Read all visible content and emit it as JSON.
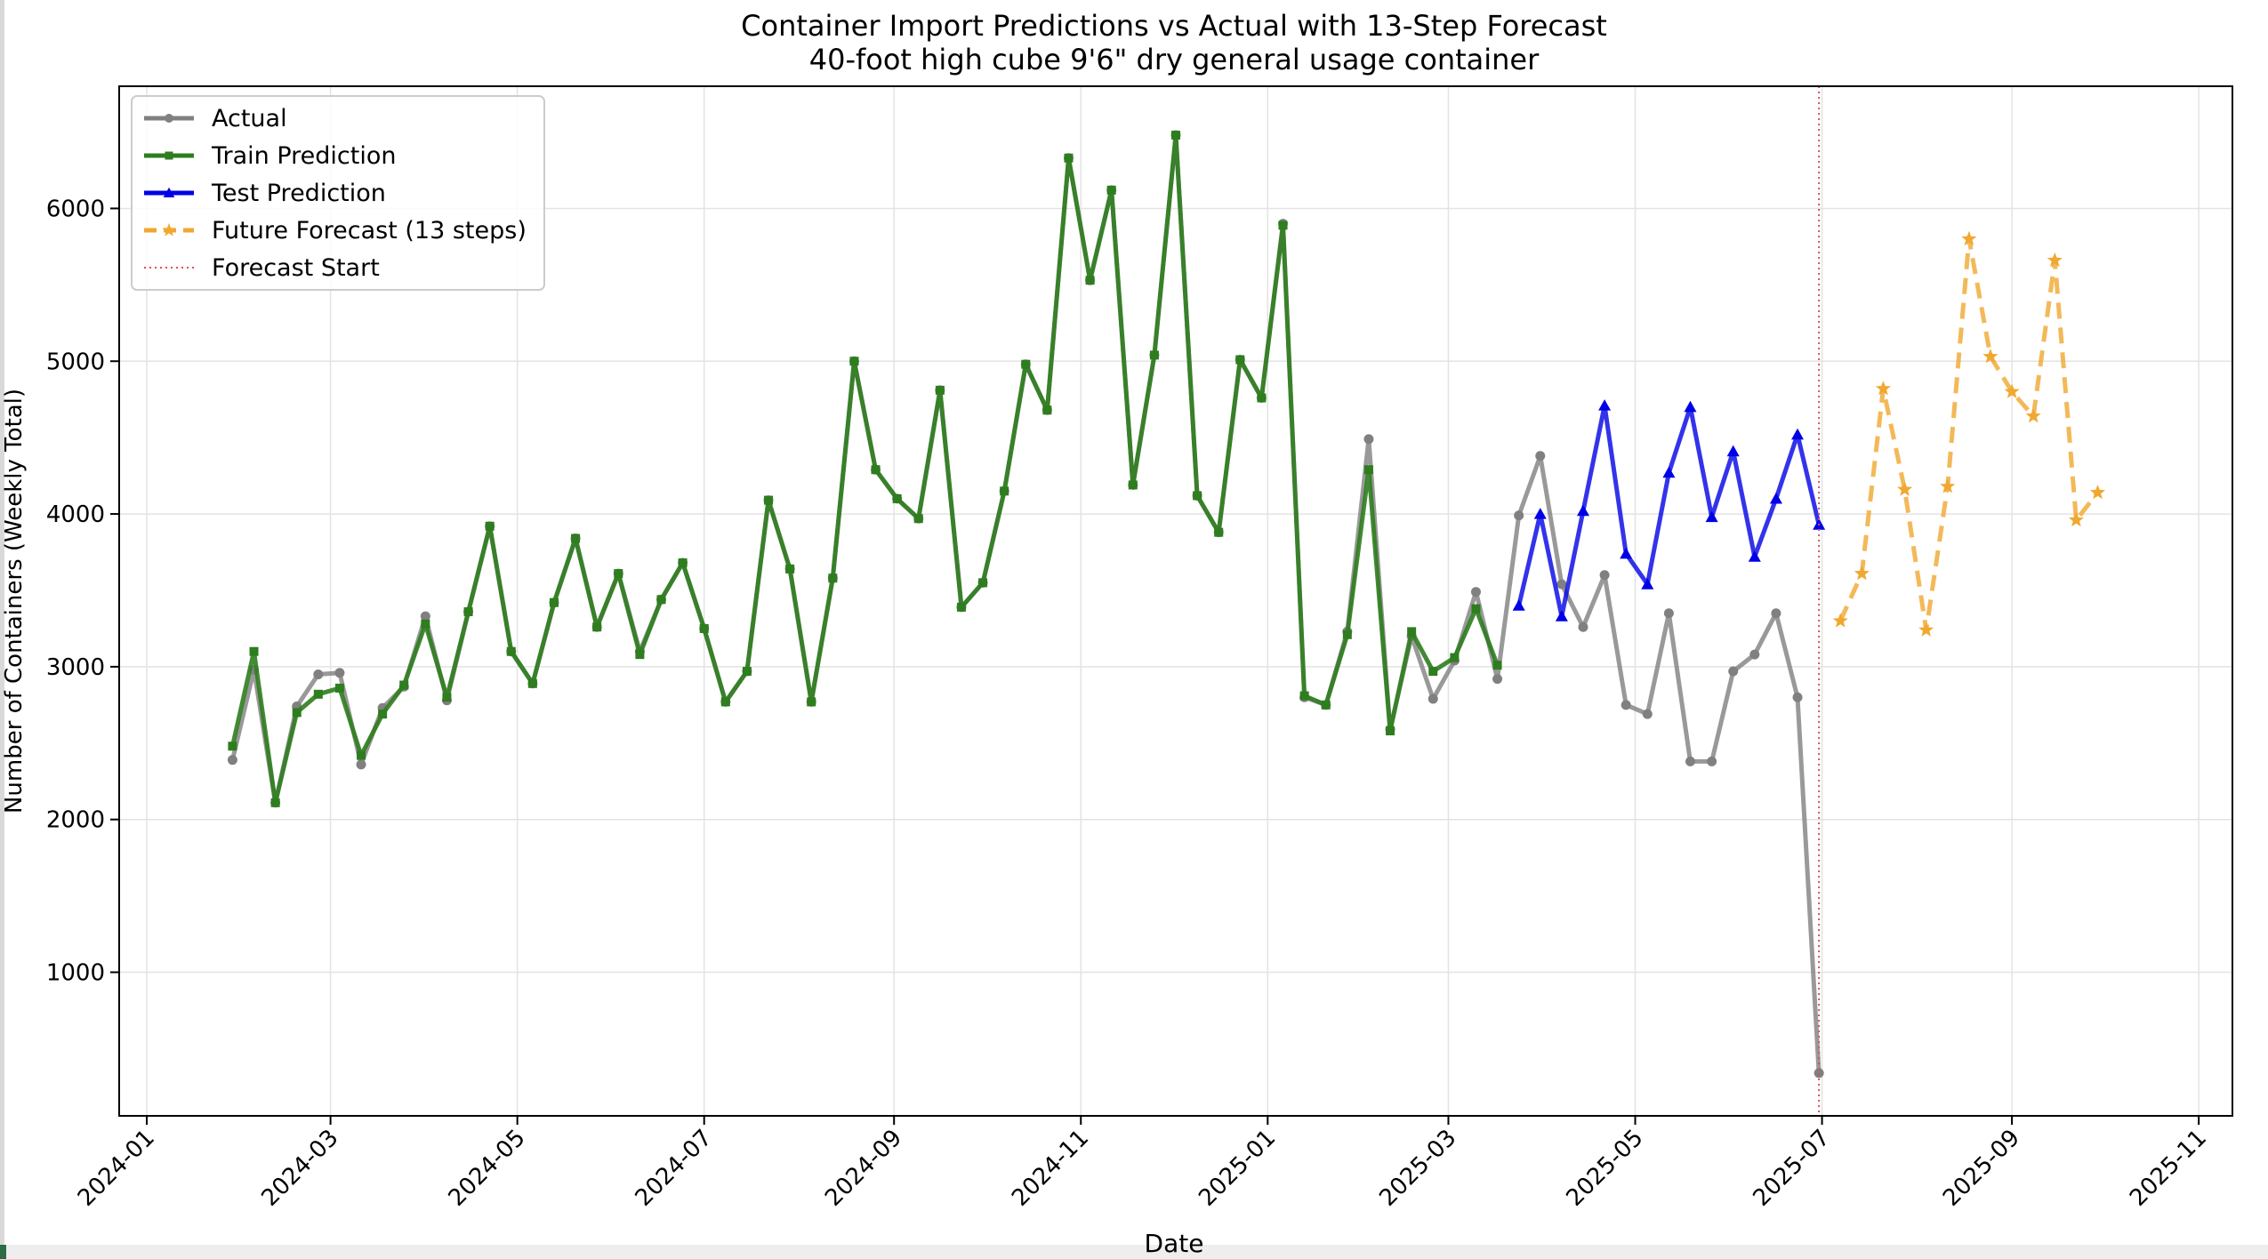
{
  "chart_data": {
    "type": "line",
    "title": "Container Import Predictions vs Actual with 13-Step Forecast",
    "subtitle": "40-foot high cube 9'6\" dry general usage container",
    "xlabel": "Date",
    "ylabel": "Number of Containers (Weekly Total)",
    "x_axis": {
      "type": "date",
      "range": [
        "2023-12-23",
        "2025-11-12"
      ],
      "tick_dates": [
        "2024-01-01",
        "2024-03-01",
        "2024-05-01",
        "2024-07-01",
        "2024-09-01",
        "2024-11-01",
        "2025-01-01",
        "2025-03-01",
        "2025-05-01",
        "2025-07-01",
        "2025-09-01",
        "2025-11-01"
      ],
      "tick_labels": [
        "2024-01",
        "2024-03",
        "2024-05",
        "2024-07",
        "2024-09",
        "2024-11",
        "2025-01",
        "2025-03",
        "2025-05",
        "2025-07",
        "2025-09",
        "2025-11"
      ]
    },
    "y_axis": {
      "range": [
        60,
        6800
      ],
      "ticks": [
        1000,
        2000,
        3000,
        4000,
        5000,
        6000
      ],
      "tick_labels": [
        "1000",
        "2000",
        "3000",
        "4000",
        "5000",
        "6000"
      ]
    },
    "grid": true,
    "legend_position": "top-left",
    "forecast_start": "2025-06-30",
    "series": [
      {
        "name": "Actual",
        "color": "#808080",
        "marker": "circle",
        "x": [
          "2024-01-29",
          "2024-02-05",
          "2024-02-12",
          "2024-02-19",
          "2024-02-26",
          "2024-03-04",
          "2024-03-11",
          "2024-03-18",
          "2024-03-25",
          "2024-04-01",
          "2024-04-08",
          "2024-04-15",
          "2024-04-22",
          "2024-04-29",
          "2024-05-06",
          "2024-05-13",
          "2024-05-20",
          "2024-05-27",
          "2024-06-03",
          "2024-06-10",
          "2024-06-17",
          "2024-06-24",
          "2024-07-01",
          "2024-07-08",
          "2024-07-15",
          "2024-07-22",
          "2024-07-29",
          "2024-08-05",
          "2024-08-12",
          "2024-08-19",
          "2024-08-26",
          "2024-09-02",
          "2024-09-09",
          "2024-09-16",
          "2024-09-23",
          "2024-09-30",
          "2024-10-07",
          "2024-10-14",
          "2024-10-21",
          "2024-10-28",
          "2024-11-04",
          "2024-11-11",
          "2024-11-18",
          "2024-11-25",
          "2024-12-02",
          "2024-12-09",
          "2024-12-16",
          "2024-12-23",
          "2024-12-30",
          "2025-01-06",
          "2025-01-13",
          "2025-01-20",
          "2025-01-27",
          "2025-02-03",
          "2025-02-10",
          "2025-02-17",
          "2025-02-24",
          "2025-03-03",
          "2025-03-10",
          "2025-03-17",
          "2025-03-24",
          "2025-03-31",
          "2025-04-07",
          "2025-04-14",
          "2025-04-21",
          "2025-04-28",
          "2025-05-05",
          "2025-05-12",
          "2025-05-19",
          "2025-05-26",
          "2025-06-02",
          "2025-06-09",
          "2025-06-16",
          "2025-06-23",
          "2025-06-30"
        ],
        "values": [
          2390,
          2980,
          2110,
          2740,
          2950,
          2960,
          2360,
          2730,
          2870,
          3330,
          2780,
          3360,
          3920,
          3100,
          2890,
          3420,
          3840,
          3260,
          3610,
          3100,
          3440,
          3680,
          3250,
          2770,
          2970,
          4090,
          3640,
          2770,
          3580,
          5000,
          4290,
          4100,
          3970,
          4810,
          3390,
          3550,
          4150,
          4980,
          4680,
          6330,
          5530,
          6120,
          4190,
          5040,
          6480,
          4120,
          3880,
          5010,
          4760,
          5900,
          2800,
          2750,
          3230,
          4490,
          2590,
          3200,
          2790,
          3040,
          3490,
          2920,
          3990,
          4380,
          3540,
          3260,
          3600,
          2750,
          2690,
          3350,
          2380,
          2380,
          2970,
          3080,
          3350,
          2800,
          340
        ]
      },
      {
        "name": "Train Prediction",
        "color": "#2e7d1e",
        "marker": "square",
        "x": [
          "2024-01-29",
          "2024-02-05",
          "2024-02-12",
          "2024-02-19",
          "2024-02-26",
          "2024-03-04",
          "2024-03-11",
          "2024-03-18",
          "2024-03-25",
          "2024-04-01",
          "2024-04-08",
          "2024-04-15",
          "2024-04-22",
          "2024-04-29",
          "2024-05-06",
          "2024-05-13",
          "2024-05-20",
          "2024-05-27",
          "2024-06-03",
          "2024-06-10",
          "2024-06-17",
          "2024-06-24",
          "2024-07-01",
          "2024-07-08",
          "2024-07-15",
          "2024-07-22",
          "2024-07-29",
          "2024-08-05",
          "2024-08-12",
          "2024-08-19",
          "2024-08-26",
          "2024-09-02",
          "2024-09-09",
          "2024-09-16",
          "2024-09-23",
          "2024-09-30",
          "2024-10-07",
          "2024-10-14",
          "2024-10-21",
          "2024-10-28",
          "2024-11-04",
          "2024-11-11",
          "2024-11-18",
          "2024-11-25",
          "2024-12-02",
          "2024-12-09",
          "2024-12-16",
          "2024-12-23",
          "2024-12-30",
          "2025-01-06",
          "2025-01-13",
          "2025-01-20",
          "2025-01-27",
          "2025-02-03",
          "2025-02-10",
          "2025-02-17",
          "2025-02-24",
          "2025-03-03",
          "2025-03-10",
          "2025-03-17"
        ],
        "values": [
          2480,
          3100,
          2110,
          2700,
          2820,
          2860,
          2420,
          2690,
          2880,
          3280,
          2800,
          3360,
          3920,
          3100,
          2890,
          3420,
          3840,
          3260,
          3610,
          3080,
          3440,
          3680,
          3250,
          2770,
          2970,
          4090,
          3640,
          2770,
          3580,
          5000,
          4290,
          4100,
          3970,
          4810,
          3390,
          3550,
          4150,
          4980,
          4680,
          6330,
          5530,
          6120,
          4190,
          5040,
          6480,
          4120,
          3880,
          5010,
          4760,
          5890,
          2810,
          2750,
          3210,
          4290,
          2580,
          3230,
          2970,
          3060,
          3380,
          3010
        ]
      },
      {
        "name": "Test Prediction",
        "color": "#0000e6",
        "marker": "triangle",
        "x": [
          "2025-03-24",
          "2025-03-31",
          "2025-04-07",
          "2025-04-14",
          "2025-04-21",
          "2025-04-28",
          "2025-05-05",
          "2025-05-12",
          "2025-05-19",
          "2025-05-26",
          "2025-06-02",
          "2025-06-09",
          "2025-06-16",
          "2025-06-23",
          "2025-06-30"
        ],
        "values": [
          3400,
          4000,
          3330,
          4020,
          4710,
          3740,
          3540,
          4270,
          4700,
          3980,
          4410,
          3720,
          4100,
          4520,
          3930
        ]
      },
      {
        "name": "Future Forecast (13 steps)",
        "color": "#f0a830",
        "marker": "star",
        "style": "dashed",
        "x": [
          "2025-07-07",
          "2025-07-14",
          "2025-07-21",
          "2025-07-28",
          "2025-08-04",
          "2025-08-11",
          "2025-08-18",
          "2025-08-25",
          "2025-09-01",
          "2025-09-08",
          "2025-09-15",
          "2025-09-22",
          "2025-09-29"
        ],
        "values": [
          3300,
          3610,
          4820,
          4160,
          3240,
          4180,
          5800,
          5030,
          4800,
          4640,
          5660,
          3960,
          4140
        ]
      }
    ],
    "forecast_line": {
      "name": "Forecast Start",
      "color": "#e05050",
      "style": "dotted"
    }
  }
}
